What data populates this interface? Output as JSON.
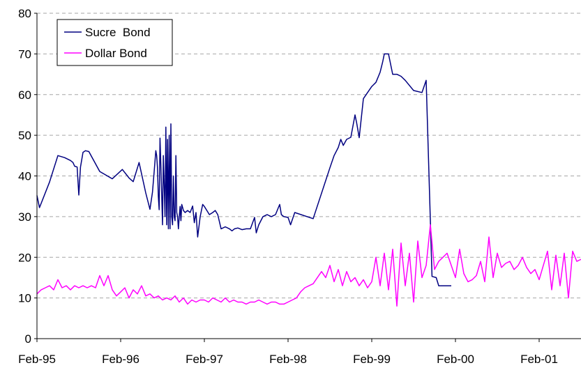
{
  "chart_data": {
    "type": "line",
    "title": "",
    "xlabel": "",
    "ylabel": "",
    "ylim": [
      0,
      80
    ],
    "y_ticks": [
      "0",
      "10",
      "20",
      "30",
      "40",
      "50",
      "60",
      "70",
      "80"
    ],
    "x_ticks": [
      "Feb-95",
      "Feb-96",
      "Feb-97",
      "Feb-98",
      "Feb-99",
      "Feb-00",
      "Feb-01"
    ],
    "xlim": [
      "1995-02",
      "2001-08"
    ],
    "grid": "horizontal dashed",
    "legend_position": "top-left",
    "series": [
      {
        "name": "Sucre  Bond",
        "color": "#000080",
        "x": [
          0.0,
          0.03,
          0.15,
          0.25,
          0.33,
          0.4,
          0.43,
          0.45,
          0.48,
          0.5,
          0.52,
          0.55,
          0.58,
          0.62,
          0.75,
          0.9,
          1.02,
          1.1,
          1.15,
          1.22,
          1.3,
          1.35,
          1.38,
          1.4,
          1.42,
          1.43,
          1.44,
          1.45,
          1.46,
          1.47,
          1.48,
          1.5,
          1.51,
          1.52,
          1.53,
          1.54,
          1.55,
          1.56,
          1.57,
          1.58,
          1.59,
          1.6,
          1.61,
          1.62,
          1.63,
          1.64,
          1.65,
          1.66,
          1.67,
          1.68,
          1.69,
          1.7,
          1.71,
          1.72,
          1.73,
          1.75,
          1.77,
          1.8,
          1.83,
          1.86,
          1.88,
          1.9,
          1.92,
          1.95,
          1.98,
          2.0,
          2.03,
          2.06,
          2.1,
          2.13,
          2.16,
          2.2,
          2.25,
          2.3,
          2.33,
          2.36,
          2.4,
          2.45,
          2.5,
          2.55,
          2.6,
          2.62,
          2.65,
          2.7,
          2.75,
          2.8,
          2.85,
          2.9,
          2.92,
          2.95,
          3.0,
          3.03,
          3.08,
          3.3,
          3.5,
          3.55,
          3.6,
          3.63,
          3.66,
          3.7,
          3.75,
          3.8,
          3.82,
          3.85,
          3.9,
          3.95,
          4.0,
          4.05,
          4.1,
          4.13,
          4.15,
          4.2,
          4.25,
          4.3,
          4.35,
          4.4,
          4.5,
          4.6,
          4.65,
          4.72,
          4.77,
          4.8,
          4.85,
          4.88,
          4.92,
          4.95
        ],
        "y": [
          35.2,
          32.2,
          38.5,
          45.0,
          44.5,
          43.8,
          43.3,
          42.4,
          42.2,
          35.3,
          42.2,
          45.8,
          46.2,
          46.0,
          41.1,
          39.3,
          41.6,
          39.5,
          38.6,
          43.3,
          35.8,
          31.8,
          36.0,
          41.0,
          46.2,
          45.0,
          42.0,
          35.0,
          31.7,
          49.3,
          43.0,
          28.0,
          45.0,
          38.0,
          30.0,
          52.0,
          28.0,
          49.0,
          27.0,
          50.0,
          27.0,
          52.8,
          30.0,
          28.0,
          40.0,
          30.0,
          29.0,
          45.0,
          31.0,
          30.0,
          27.0,
          30.0,
          32.5,
          29.0,
          33.0,
          31.5,
          31.0,
          31.5,
          31.0,
          32.6,
          28.5,
          31.0,
          25.0,
          30.0,
          33.0,
          32.5,
          31.5,
          30.5,
          31.0,
          31.5,
          30.5,
          27.0,
          27.5,
          27.0,
          26.5,
          27.0,
          27.2,
          26.8,
          27.0,
          27.0,
          29.8,
          26.0,
          28.0,
          30.0,
          30.5,
          30.0,
          30.5,
          33.0,
          30.5,
          30.0,
          29.8,
          28.0,
          31.0,
          29.5,
          42.0,
          45.0,
          47.0,
          49.0,
          47.5,
          49.0,
          49.5,
          55.0,
          53.0,
          49.4,
          59.0,
          60.5,
          62.0,
          63.0,
          65.5,
          68.0,
          70.0,
          70.0,
          65.0,
          65.0,
          64.5,
          63.5,
          61.0,
          60.5,
          63.5,
          15.3,
          15.0,
          13.0,
          13.0,
          13.0,
          13.0,
          13.0
        ]
      },
      {
        "name": "Dollar Bond",
        "color": "#ff00ff",
        "x": [
          0.0,
          0.05,
          0.1,
          0.15,
          0.2,
          0.25,
          0.3,
          0.35,
          0.4,
          0.45,
          0.5,
          0.55,
          0.6,
          0.65,
          0.7,
          0.75,
          0.8,
          0.85,
          0.9,
          0.95,
          1.0,
          1.05,
          1.1,
          1.15,
          1.2,
          1.25,
          1.3,
          1.35,
          1.4,
          1.45,
          1.5,
          1.55,
          1.6,
          1.65,
          1.7,
          1.75,
          1.8,
          1.85,
          1.9,
          1.95,
          2.0,
          2.05,
          2.1,
          2.15,
          2.2,
          2.25,
          2.3,
          2.35,
          2.4,
          2.45,
          2.5,
          2.55,
          2.6,
          2.65,
          2.7,
          2.75,
          2.8,
          2.85,
          2.9,
          2.95,
          3.0,
          3.05,
          3.1,
          3.15,
          3.2,
          3.25,
          3.3,
          3.35,
          3.4,
          3.45,
          3.5,
          3.55,
          3.6,
          3.65,
          3.7,
          3.75,
          3.8,
          3.85,
          3.9,
          3.95,
          4.0,
          4.05,
          4.1,
          4.15,
          4.2,
          4.25,
          4.3,
          4.35,
          4.4,
          4.45,
          4.5,
          4.55,
          4.6,
          4.65,
          4.7,
          4.75,
          4.8,
          4.85,
          4.9,
          4.95,
          5.0,
          5.05,
          5.1,
          5.15,
          5.2,
          5.25,
          5.3,
          5.35,
          5.4,
          5.45,
          5.5,
          5.55,
          5.6,
          5.65,
          5.7,
          5.75,
          5.8,
          5.85,
          5.9,
          5.95,
          6.0,
          6.05,
          6.1,
          6.15,
          6.2,
          6.25,
          6.3,
          6.35,
          6.4,
          6.45,
          6.5
        ],
        "y": [
          11.0,
          12.0,
          12.5,
          13.0,
          12.0,
          14.5,
          12.5,
          13.0,
          12.0,
          13.0,
          12.5,
          13.0,
          12.5,
          13.0,
          12.5,
          15.5,
          13.0,
          15.5,
          12.0,
          10.5,
          11.5,
          12.5,
          10.0,
          12.0,
          11.0,
          13.0,
          10.5,
          11.0,
          10.0,
          10.5,
          9.5,
          10.0,
          9.5,
          10.5,
          9.0,
          10.0,
          8.5,
          9.5,
          9.0,
          9.5,
          9.5,
          9.0,
          10.0,
          9.5,
          9.0,
          10.0,
          9.0,
          9.5,
          9.0,
          9.0,
          8.5,
          9.0,
          9.0,
          9.5,
          9.0,
          8.5,
          9.0,
          9.0,
          8.5,
          8.5,
          9.0,
          9.5,
          10.0,
          11.5,
          12.5,
          13.0,
          13.5,
          15.0,
          16.5,
          15.0,
          18.0,
          14.0,
          17.0,
          13.0,
          16.5,
          14.0,
          15.0,
          13.0,
          14.5,
          12.5,
          14.0,
          20.0,
          13.0,
          21.0,
          12.0,
          22.0,
          8.0,
          23.5,
          13.0,
          21.0,
          9.0,
          24.0,
          15.0,
          18.0,
          28.0,
          17.0,
          19.0,
          20.0,
          21.0,
          18.0,
          15.0,
          22.0,
          16.0,
          14.0,
          14.5,
          15.5,
          19.0,
          14.0,
          25.0,
          15.0,
          21.0,
          17.5,
          18.5,
          19.0,
          17.0,
          18.0,
          20.0,
          17.5,
          16.0,
          17.0,
          14.5,
          18.0,
          21.5,
          12.0,
          20.5,
          13.0,
          21.0,
          10.0,
          21.5,
          19.0,
          19.5
        ]
      }
    ]
  }
}
